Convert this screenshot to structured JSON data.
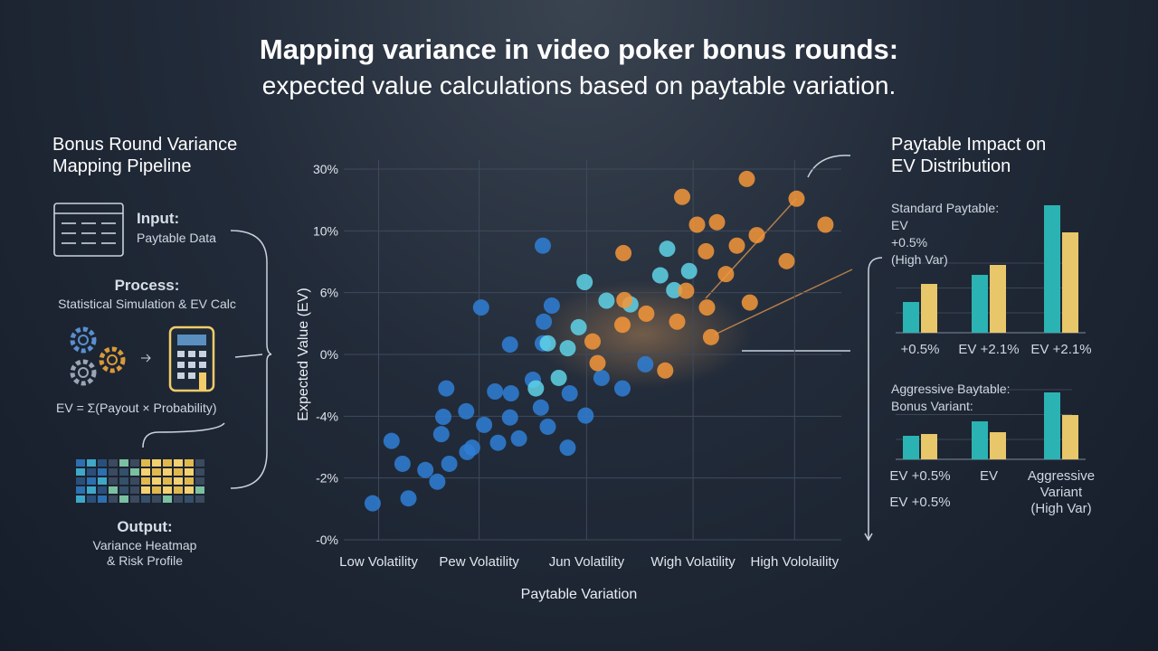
{
  "title": "Mapping variance in video poker bonus rounds:",
  "subtitle": "expected value calculations based on paytable variation.",
  "pipeline": {
    "title": "Bonus Round Variance\nMapping Pipeline",
    "input": {
      "label": "Input:",
      "text": "Paytable Data"
    },
    "process": {
      "label": "Process:",
      "text": "Statistical Simulation & EV Calc"
    },
    "formula": "EV = Σ(Payout × Probability)",
    "output": {
      "label": "Output:",
      "text": "Variance Heatmap\n& Risk Profile"
    }
  },
  "impact_title": "Paytable Impact on\nEV Distribution",
  "chart_data": [
    {
      "type": "scatter",
      "xlabel": "Paytable Variation",
      "ylabel": "Expected Value (EV)",
      "xlim": [
        0,
        5
      ],
      "ylim": [
        0,
        6
      ],
      "xticks": [
        {
          "value": 0.35,
          "label": "Low Volatility"
        },
        {
          "value": 1.36,
          "label": "Pew Volatility"
        },
        {
          "value": 2.44,
          "label": "Jun Volatility"
        },
        {
          "value": 3.51,
          "label": "Wigh Volatility"
        },
        {
          "value": 4.53,
          "label": "High Vololaility"
        }
      ],
      "yticks": [
        {
          "value": 0,
          "label": "-0%"
        },
        {
          "value": 1,
          "label": "-2%"
        },
        {
          "value": 2,
          "label": "-4%"
        },
        {
          "value": 3,
          "label": "0%"
        },
        {
          "value": 4,
          "label": "6%"
        },
        {
          "value": 5,
          "label": "10%"
        },
        {
          "value": 6,
          "label": "30%"
        }
      ],
      "grid": true,
      "series": [
        {
          "color": "#2f7fd6",
          "x": [
            0.29,
            0.48,
            0.59,
            0.65,
            0.82,
            0.98,
            1.0,
            0.94,
            1.06,
            1.24,
            1.29,
            1.03,
            1.23,
            1.41,
            1.52,
            1.55,
            1.67,
            1.68,
            1.76,
            1.67,
            1.38,
            2.0,
            2.05,
            1.98,
            2.01,
            2.25,
            2.43,
            1.9,
            2.27,
            2.59,
            2.8,
            3.03,
            2.0,
            2.09
          ],
          "values": [
            0.59,
            1.6,
            1.23,
            0.67,
            1.13,
            1.71,
            1.99,
            0.94,
            1.23,
            1.42,
            1.49,
            2.45,
            2.08,
            1.86,
            2.4,
            1.57,
            1.98,
            2.37,
            1.64,
            3.16,
            3.76,
            4.76,
            1.83,
            2.14,
            3.53,
            1.49,
            2.01,
            2.59,
            2.37,
            2.62,
            2.45,
            2.84,
            3.18,
            3.79
          ]
        },
        {
          "color": "#5fd3e8",
          "x": [
            2.05,
            2.16,
            2.36,
            2.42,
            2.64,
            2.88,
            3.18,
            3.25,
            3.47,
            3.32,
            1.93,
            2.25
          ],
          "values": [
            3.18,
            2.62,
            3.44,
            4.17,
            3.87,
            3.81,
            4.28,
            4.71,
            4.35,
            4.04,
            2.45,
            3.1
          ]
        },
        {
          "color": "#f5973a",
          "x": [
            2.5,
            2.55,
            2.8,
            2.82,
            3.04,
            3.23,
            3.44,
            3.35,
            3.65,
            3.69,
            3.55,
            3.75,
            3.64,
            3.84,
            3.95,
            4.15,
            4.05,
            4.55,
            4.84,
            4.08,
            4.45,
            2.81,
            3.4
          ],
          "values": [
            3.21,
            2.86,
            3.48,
            3.88,
            3.66,
            2.74,
            4.03,
            3.53,
            3.76,
            3.28,
            5.1,
            5.14,
            4.67,
            4.3,
            4.76,
            4.93,
            5.84,
            5.52,
            5.1,
            3.84,
            4.51,
            4.64,
            5.55
          ]
        }
      ]
    },
    {
      "type": "bar",
      "annotations": [
        "Standard Paytable:",
        "EV",
        "+0.5%",
        "(High Var)"
      ],
      "categories": [
        "+0.5%",
        "EV +2.1%",
        "EV +2.1%"
      ],
      "ylim": [
        0,
        15
      ],
      "series": [
        {
          "color": "#2bb3b3",
          "values": [
            3.4,
            6.4,
            14.1
          ]
        },
        {
          "color": "#e8c66a",
          "values": [
            5.4,
            7.5,
            11.1
          ]
        }
      ]
    },
    {
      "type": "bar",
      "annotations": [
        "Aggressive Baytable:",
        "Bonus Variant:"
      ],
      "categories": [
        "EV +0.5%",
        "EV",
        "Aggressive\nVariant\n(High Var)"
      ],
      "note": "EV +0.5%",
      "ylim": [
        0,
        15
      ],
      "series": [
        {
          "color": "#2bb3b3",
          "values": [
            2.6,
            4.2,
            7.4
          ]
        },
        {
          "color": "#e8c66a",
          "values": [
            2.8,
            3.0,
            4.9
          ]
        }
      ]
    }
  ]
}
